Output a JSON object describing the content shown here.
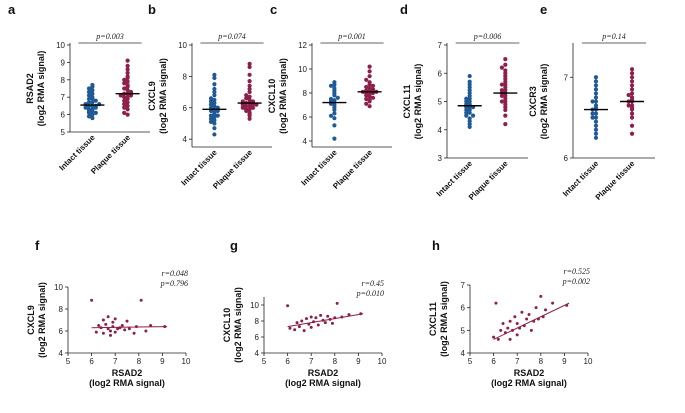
{
  "chart_data": [
    {
      "type": "scatter",
      "panel": "a",
      "ylabel": "RSAD2",
      "ylabel2": "(log2 RMA signal)",
      "ylim": [
        5,
        10
      ],
      "yticks": [
        5,
        6,
        7,
        8,
        9,
        10
      ],
      "pvalue": "p=0.003",
      "categories": [
        "Intact tissue",
        "Plaque tissue"
      ],
      "series": [
        {
          "name": "Intact tissue",
          "mean": 6.55,
          "values": [
            5.8,
            5.9,
            6.0,
            6.1,
            6.1,
            6.2,
            6.2,
            6.3,
            6.3,
            6.4,
            6.4,
            6.5,
            6.5,
            6.5,
            6.6,
            6.6,
            6.7,
            6.7,
            6.8,
            6.9,
            6.9,
            7.0,
            7.1,
            7.2,
            7.3,
            7.4,
            7.5,
            7.6,
            7.7
          ]
        },
        {
          "name": "Plaque tissue",
          "mean": 7.2,
          "values": [
            6.0,
            6.1,
            6.3,
            6.4,
            6.5,
            6.6,
            6.7,
            6.8,
            6.9,
            7.0,
            7.0,
            7.1,
            7.1,
            7.2,
            7.2,
            7.3,
            7.4,
            7.5,
            7.6,
            7.7,
            7.8,
            7.9,
            8.0,
            8.1,
            8.2,
            8.4,
            8.6,
            8.8,
            9.1
          ]
        }
      ]
    },
    {
      "type": "scatter",
      "panel": "b",
      "ylabel": "CXCL9",
      "ylabel2": "(log2 RMA signal)",
      "ylim": [
        3.5,
        10
      ],
      "yticks": [
        4,
        6,
        8,
        10
      ],
      "pvalue": "p=0.074",
      "categories": [
        "Intact tissue",
        "Plaque tissue"
      ],
      "series": [
        {
          "name": "Intact tissue",
          "mean": 5.9,
          "values": [
            4.3,
            4.7,
            5.0,
            5.1,
            5.2,
            5.3,
            5.4,
            5.5,
            5.5,
            5.6,
            5.7,
            5.8,
            5.8,
            5.9,
            6.0,
            6.0,
            6.1,
            6.2,
            6.3,
            6.4,
            6.5,
            6.6,
            6.8,
            7.0,
            7.2,
            7.5,
            7.9,
            8.1
          ]
        },
        {
          "name": "Plaque tissue",
          "mean": 6.3,
          "values": [
            5.3,
            5.5,
            5.6,
            5.7,
            5.8,
            5.9,
            5.9,
            6.0,
            6.0,
            6.1,
            6.1,
            6.2,
            6.2,
            6.2,
            6.3,
            6.3,
            6.4,
            6.4,
            6.5,
            6.6,
            6.7,
            6.8,
            7.0,
            7.2,
            7.4,
            7.7,
            8.1,
            8.6,
            8.8
          ]
        }
      ]
    },
    {
      "type": "scatter",
      "panel": "c",
      "ylabel": "CXCL10",
      "ylabel2": "(log2 RMA signal)",
      "ylim": [
        3.5,
        12
      ],
      "yticks": [
        4,
        6,
        8,
        10,
        12
      ],
      "pvalue": "p=0.001",
      "categories": [
        "Intact tissue",
        "Plaque tissue"
      ],
      "series": [
        {
          "name": "Intact tissue",
          "mean": 7.2,
          "values": [
            4.2,
            5.3,
            5.9,
            6.1,
            6.3,
            6.6,
            6.8,
            7.0,
            7.1,
            7.2,
            7.3,
            7.4,
            7.5,
            7.6,
            7.8,
            8.0,
            8.2,
            8.4,
            8.6,
            8.7,
            8.9
          ]
        },
        {
          "name": "Plaque tissue",
          "mean": 8.1,
          "values": [
            6.9,
            7.1,
            7.3,
            7.4,
            7.5,
            7.6,
            7.7,
            7.8,
            7.9,
            8.0,
            8.0,
            8.1,
            8.1,
            8.2,
            8.2,
            8.3,
            8.4,
            8.5,
            8.6,
            8.7,
            8.9,
            9.1,
            9.4,
            9.8,
            10.2
          ]
        }
      ]
    },
    {
      "type": "scatter",
      "panel": "d",
      "ylabel": "CXCL11",
      "ylabel2": "(log2 RMA signal)",
      "ylim": [
        3,
        7
      ],
      "yticks": [
        3,
        4,
        5,
        6,
        7
      ],
      "pvalue": "p=0.006",
      "categories": [
        "Intact tissue",
        "Plaque tissue"
      ],
      "series": [
        {
          "name": "Intact tissue",
          "mean": 4.85,
          "values": [
            4.1,
            4.2,
            4.3,
            4.4,
            4.5,
            4.5,
            4.6,
            4.6,
            4.7,
            4.7,
            4.8,
            4.8,
            4.8,
            4.9,
            4.9,
            5.0,
            5.0,
            5.1,
            5.1,
            5.2,
            5.3,
            5.4,
            5.5,
            5.6,
            5.7,
            5.9
          ]
        },
        {
          "name": "Plaque tissue",
          "mean": 5.3,
          "values": [
            4.2,
            4.5,
            4.7,
            4.8,
            4.9,
            5.0,
            5.0,
            5.1,
            5.2,
            5.2,
            5.3,
            5.3,
            5.4,
            5.4,
            5.5,
            5.6,
            5.6,
            5.7,
            5.8,
            5.9,
            6.0,
            6.1,
            6.2,
            6.3,
            6.5
          ]
        }
      ]
    },
    {
      "type": "scatter",
      "panel": "e",
      "ylabel": "CXCR3",
      "ylabel2": "(log2 RMA signal)",
      "ylim": [
        6,
        7.4
      ],
      "yticks": [
        6,
        7
      ],
      "pvalue": "p=0.14",
      "categories": [
        "Intact tissue",
        "Plaque tissue"
      ],
      "series": [
        {
          "name": "Intact tissue",
          "mean": 6.6,
          "values": [
            6.25,
            6.3,
            6.35,
            6.4,
            6.45,
            6.5,
            6.5,
            6.55,
            6.55,
            6.6,
            6.6,
            6.62,
            6.65,
            6.7,
            6.7,
            6.75,
            6.8,
            6.85,
            6.9,
            6.95,
            7.0
          ]
        },
        {
          "name": "Plaque tissue",
          "mean": 6.7,
          "values": [
            6.3,
            6.4,
            6.5,
            6.55,
            6.6,
            6.62,
            6.65,
            6.65,
            6.7,
            6.7,
            6.72,
            6.75,
            6.78,
            6.8,
            6.85,
            6.9,
            6.95,
            7.0,
            7.05,
            7.1
          ]
        }
      ]
    },
    {
      "type": "scatter",
      "panel": "f",
      "xlabel": "RSAD2",
      "xlabel2": "(log2 RMA signal)",
      "ylabel": "CXCL9",
      "ylabel2": "(log2 RMA signal)",
      "xlim": [
        5,
        10
      ],
      "xticks": [
        5,
        6,
        7,
        8,
        9,
        10
      ],
      "ylim": [
        4,
        10
      ],
      "yticks": [
        4,
        6,
        8,
        10
      ],
      "r": "r=0.048",
      "p": "p=0.796",
      "fit": [
        [
          6,
          6.3
        ],
        [
          9.2,
          6.4
        ]
      ],
      "x": [
        6.0,
        6.2,
        6.3,
        6.4,
        6.5,
        6.5,
        6.6,
        6.7,
        6.7,
        6.8,
        6.8,
        6.9,
        6.9,
        7.0,
        7.0,
        7.1,
        7.2,
        7.3,
        7.4,
        7.5,
        7.6,
        7.8,
        7.9,
        8.1,
        8.3,
        8.5,
        9.1
      ],
      "y": [
        8.8,
        5.9,
        6.5,
        6.3,
        7.0,
        5.8,
        6.6,
        6.2,
        7.3,
        6.0,
        5.6,
        6.8,
        6.4,
        7.1,
        5.9,
        6.2,
        6.3,
        6.5,
        6.1,
        6.9,
        6.2,
        5.8,
        6.4,
        8.8,
        6.0,
        6.5,
        6.4
      ]
    },
    {
      "type": "scatter",
      "panel": "g",
      "xlabel": "RSAD2",
      "xlabel2": "(log2 RMA signal)",
      "ylabel": "CXCL10",
      "ylabel2": "(log2 RMA signal)",
      "xlim": [
        5,
        10
      ],
      "xticks": [
        5,
        6,
        7,
        8,
        9,
        10
      ],
      "ylim": [
        4,
        11
      ],
      "yticks": [
        4,
        6,
        8,
        10
      ],
      "r": "r=0.45",
      "p": "p=0.010",
      "fit": [
        [
          6,
          7.3
        ],
        [
          9.2,
          8.9
        ]
      ],
      "x": [
        6.0,
        6.1,
        6.3,
        6.4,
        6.5,
        6.6,
        6.7,
        6.8,
        6.9,
        7.0,
        7.0,
        7.1,
        7.2,
        7.3,
        7.4,
        7.5,
        7.6,
        7.7,
        7.8,
        7.9,
        8.0,
        8.1,
        8.3,
        8.6,
        9.1
      ],
      "y": [
        9.9,
        7.1,
        6.9,
        7.8,
        7.3,
        8.0,
        6.8,
        8.3,
        7.6,
        8.5,
        7.2,
        7.9,
        8.4,
        7.5,
        8.7,
        8.1,
        7.8,
        8.6,
        8.2,
        7.7,
        8.4,
        10.2,
        8.5,
        8.8,
        8.9
      ]
    },
    {
      "type": "scatter",
      "panel": "h",
      "xlabel": "RSAD2",
      "xlabel2": "(log2 RMA signal)",
      "ylabel": "CXCL11",
      "ylabel2": "(log2 RMA signal)",
      "xlim": [
        5,
        10
      ],
      "xticks": [
        5,
        6,
        7,
        8,
        9,
        10
      ],
      "ylim": [
        4,
        7
      ],
      "yticks": [
        4,
        5,
        6,
        7
      ],
      "r": "r=0.525",
      "p": "p=0.002",
      "fit": [
        [
          6,
          4.6
        ],
        [
          9.2,
          6.2
        ]
      ],
      "x": [
        6.0,
        6.1,
        6.2,
        6.3,
        6.4,
        6.5,
        6.6,
        6.7,
        6.7,
        6.8,
        6.9,
        7.0,
        7.0,
        7.1,
        7.2,
        7.3,
        7.4,
        7.5,
        7.6,
        7.7,
        7.8,
        7.9,
        8.0,
        8.1,
        8.2,
        8.5,
        9.1
      ],
      "y": [
        4.7,
        6.2,
        4.6,
        5.0,
        5.3,
        4.9,
        5.1,
        4.6,
        5.4,
        5.0,
        5.6,
        4.8,
        5.3,
        5.1,
        5.8,
        5.2,
        5.5,
        5.7,
        5.0,
        5.4,
        6.0,
        5.5,
        6.5,
        5.6,
        5.9,
        6.2,
        6.1
      ]
    }
  ]
}
